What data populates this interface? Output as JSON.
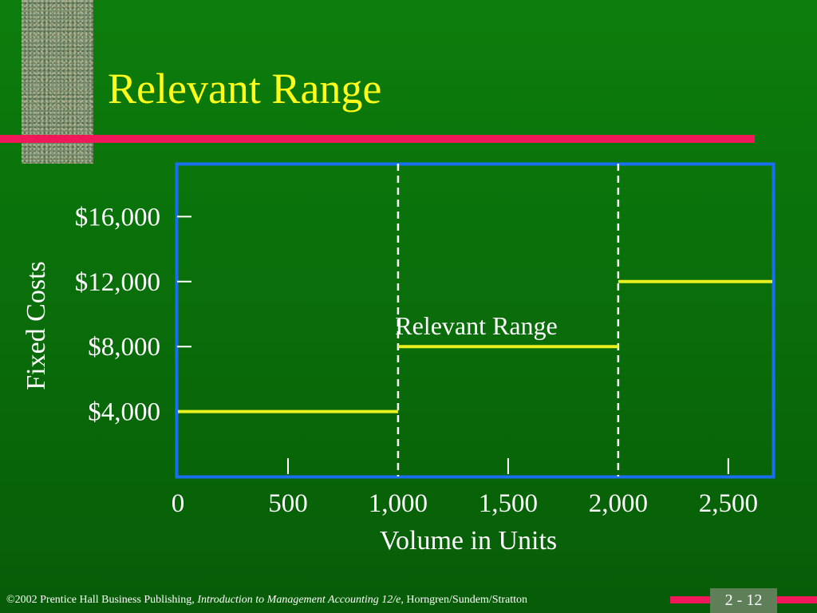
{
  "slide": {
    "title": "Relevant Range",
    "page_number": "2 - 12"
  },
  "footer": {
    "prefix": "©2002 Prentice Hall Business Publishing, ",
    "book_title": "Introduction to Management Accounting 12/e,",
    "authors": " Horngren/Sundem/Stratton"
  },
  "colors": {
    "background": "#0a6f0a",
    "title": "#ffff1a",
    "accent_rule": "#f0185a",
    "chart_frame": "#1a6ff0",
    "cost_line": "#e8f020",
    "text": "#ffffff"
  },
  "chart_data": {
    "type": "line",
    "xlabel": "Volume in Units",
    "ylabel": "Fixed Costs",
    "x_ticks": [
      0,
      500,
      1000,
      1500,
      2000,
      2500
    ],
    "x_tick_labels": [
      "0",
      "500",
      "1,000",
      "1,500",
      "2,000",
      "2,500"
    ],
    "y_ticks": [
      4000,
      8000,
      12000,
      16000
    ],
    "y_tick_labels": [
      "$4,000",
      "$8,000",
      "$12,000",
      "$16,000"
    ],
    "xlim": [
      0,
      2700
    ],
    "ylim": [
      0,
      20000
    ],
    "series": [
      {
        "segments": [
          {
            "x": [
              0,
              1000
            ],
            "y": [
              4000,
              4000
            ]
          },
          {
            "x": [
              1000,
              2000
            ],
            "y": [
              8000,
              8000
            ]
          },
          {
            "x": [
              2000,
              2700
            ],
            "y": [
              12000,
              12000
            ]
          }
        ]
      }
    ],
    "reference_lines_x": [
      1000,
      2000
    ],
    "annotation": "Relevant Range",
    "grid": false
  }
}
